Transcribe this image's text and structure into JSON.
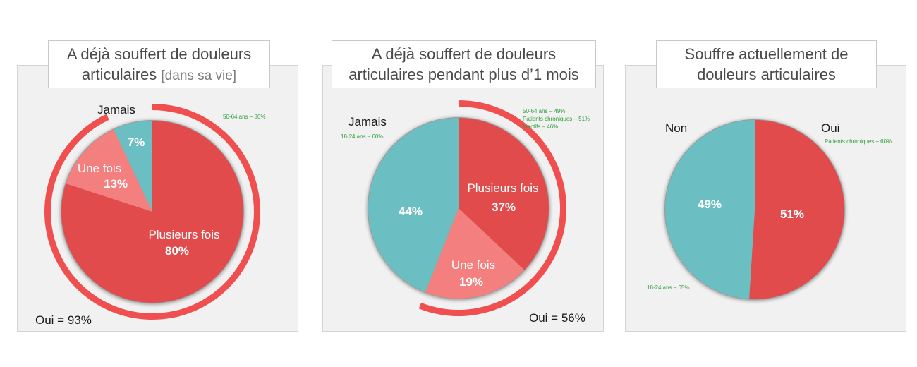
{
  "chart_data": [
    {
      "type": "pie",
      "title": "A déjà souffert de douleurs articulaires",
      "subtitle": "[dans sa vie]",
      "slices": [
        {
          "label": "Plusieurs fois",
          "value": 80,
          "value_label": "80%",
          "color": "#e24b4b"
        },
        {
          "label": "Une fois",
          "value": 13,
          "value_label": "13%",
          "color": "#f47f7f"
        },
        {
          "label": "Jamais",
          "value": 7,
          "value_label": "7%",
          "color": "#6bbfc3"
        }
      ],
      "outer_label": "Jamais",
      "total_label": "Oui = 93%",
      "total_value": 93,
      "notes": [
        "50-64 ans – 86%"
      ]
    },
    {
      "type": "pie",
      "title": "A déjà souffert de douleurs articulaires pendant plus  d’1 mois",
      "slices": [
        {
          "label": "Plusieurs fois",
          "value": 37,
          "value_label": "37%",
          "color": "#e24b4b"
        },
        {
          "label": "Une fois",
          "value": 19,
          "value_label": "19%",
          "color": "#f47f7f"
        },
        {
          "label": "Jamais",
          "value": 44,
          "value_label": "44%",
          "color": "#6bbfc3"
        }
      ],
      "outer_label": "Jamais",
      "total_label": "Oui = 56%",
      "total_value": 56,
      "notes_jamais": [
        "18-24 ans – 60%"
      ],
      "notes": [
        "50-64 ans – 49%",
        "Patients chroniques – 51%",
        "Inactifs – 46%"
      ]
    },
    {
      "type": "pie",
      "title": "Souffre actuellement de douleurs articulaires",
      "slices": [
        {
          "label": "Oui",
          "value": 51,
          "value_label": "51%",
          "color": "#e24b4b"
        },
        {
          "label": "Non",
          "value": 49,
          "value_label": "49%",
          "color": "#6bbfc3"
        }
      ],
      "notes_oui": [
        "Patients chroniques – 60%"
      ],
      "notes_non": [
        "18-24 ans – 65%"
      ]
    }
  ],
  "colors": {
    "red": "#e24b4b",
    "pink": "#f47f7f",
    "teal": "#6bbfc3",
    "ring": "#ef4f4f",
    "ring_track": "#e6e6e6",
    "note_green": "#2e9e3a"
  }
}
